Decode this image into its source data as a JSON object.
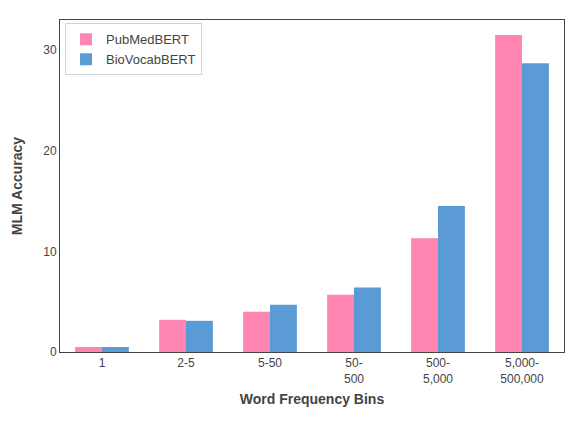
{
  "chart_data": {
    "type": "bar",
    "categories": [
      "1",
      "2-5",
      "5-50",
      "50-\n500",
      "500-\n5,000",
      "5,000-\n500,000"
    ],
    "series": [
      {
        "name": "PubMedBERT",
        "color": "#FF85B3",
        "values": [
          0.5,
          3.2,
          4.0,
          5.7,
          11.3,
          31.5
        ]
      },
      {
        "name": "BioVocabBERT",
        "color": "#5B9BD5",
        "values": [
          0.5,
          3.1,
          4.7,
          6.4,
          14.5,
          28.7
        ]
      }
    ],
    "xlabel": "Word Frequency Bins",
    "ylabel": "MLM Accuracy",
    "ylim": [
      0,
      33
    ],
    "yticks": [
      0,
      10,
      20,
      30
    ],
    "grid": false,
    "legend": "upper left"
  }
}
